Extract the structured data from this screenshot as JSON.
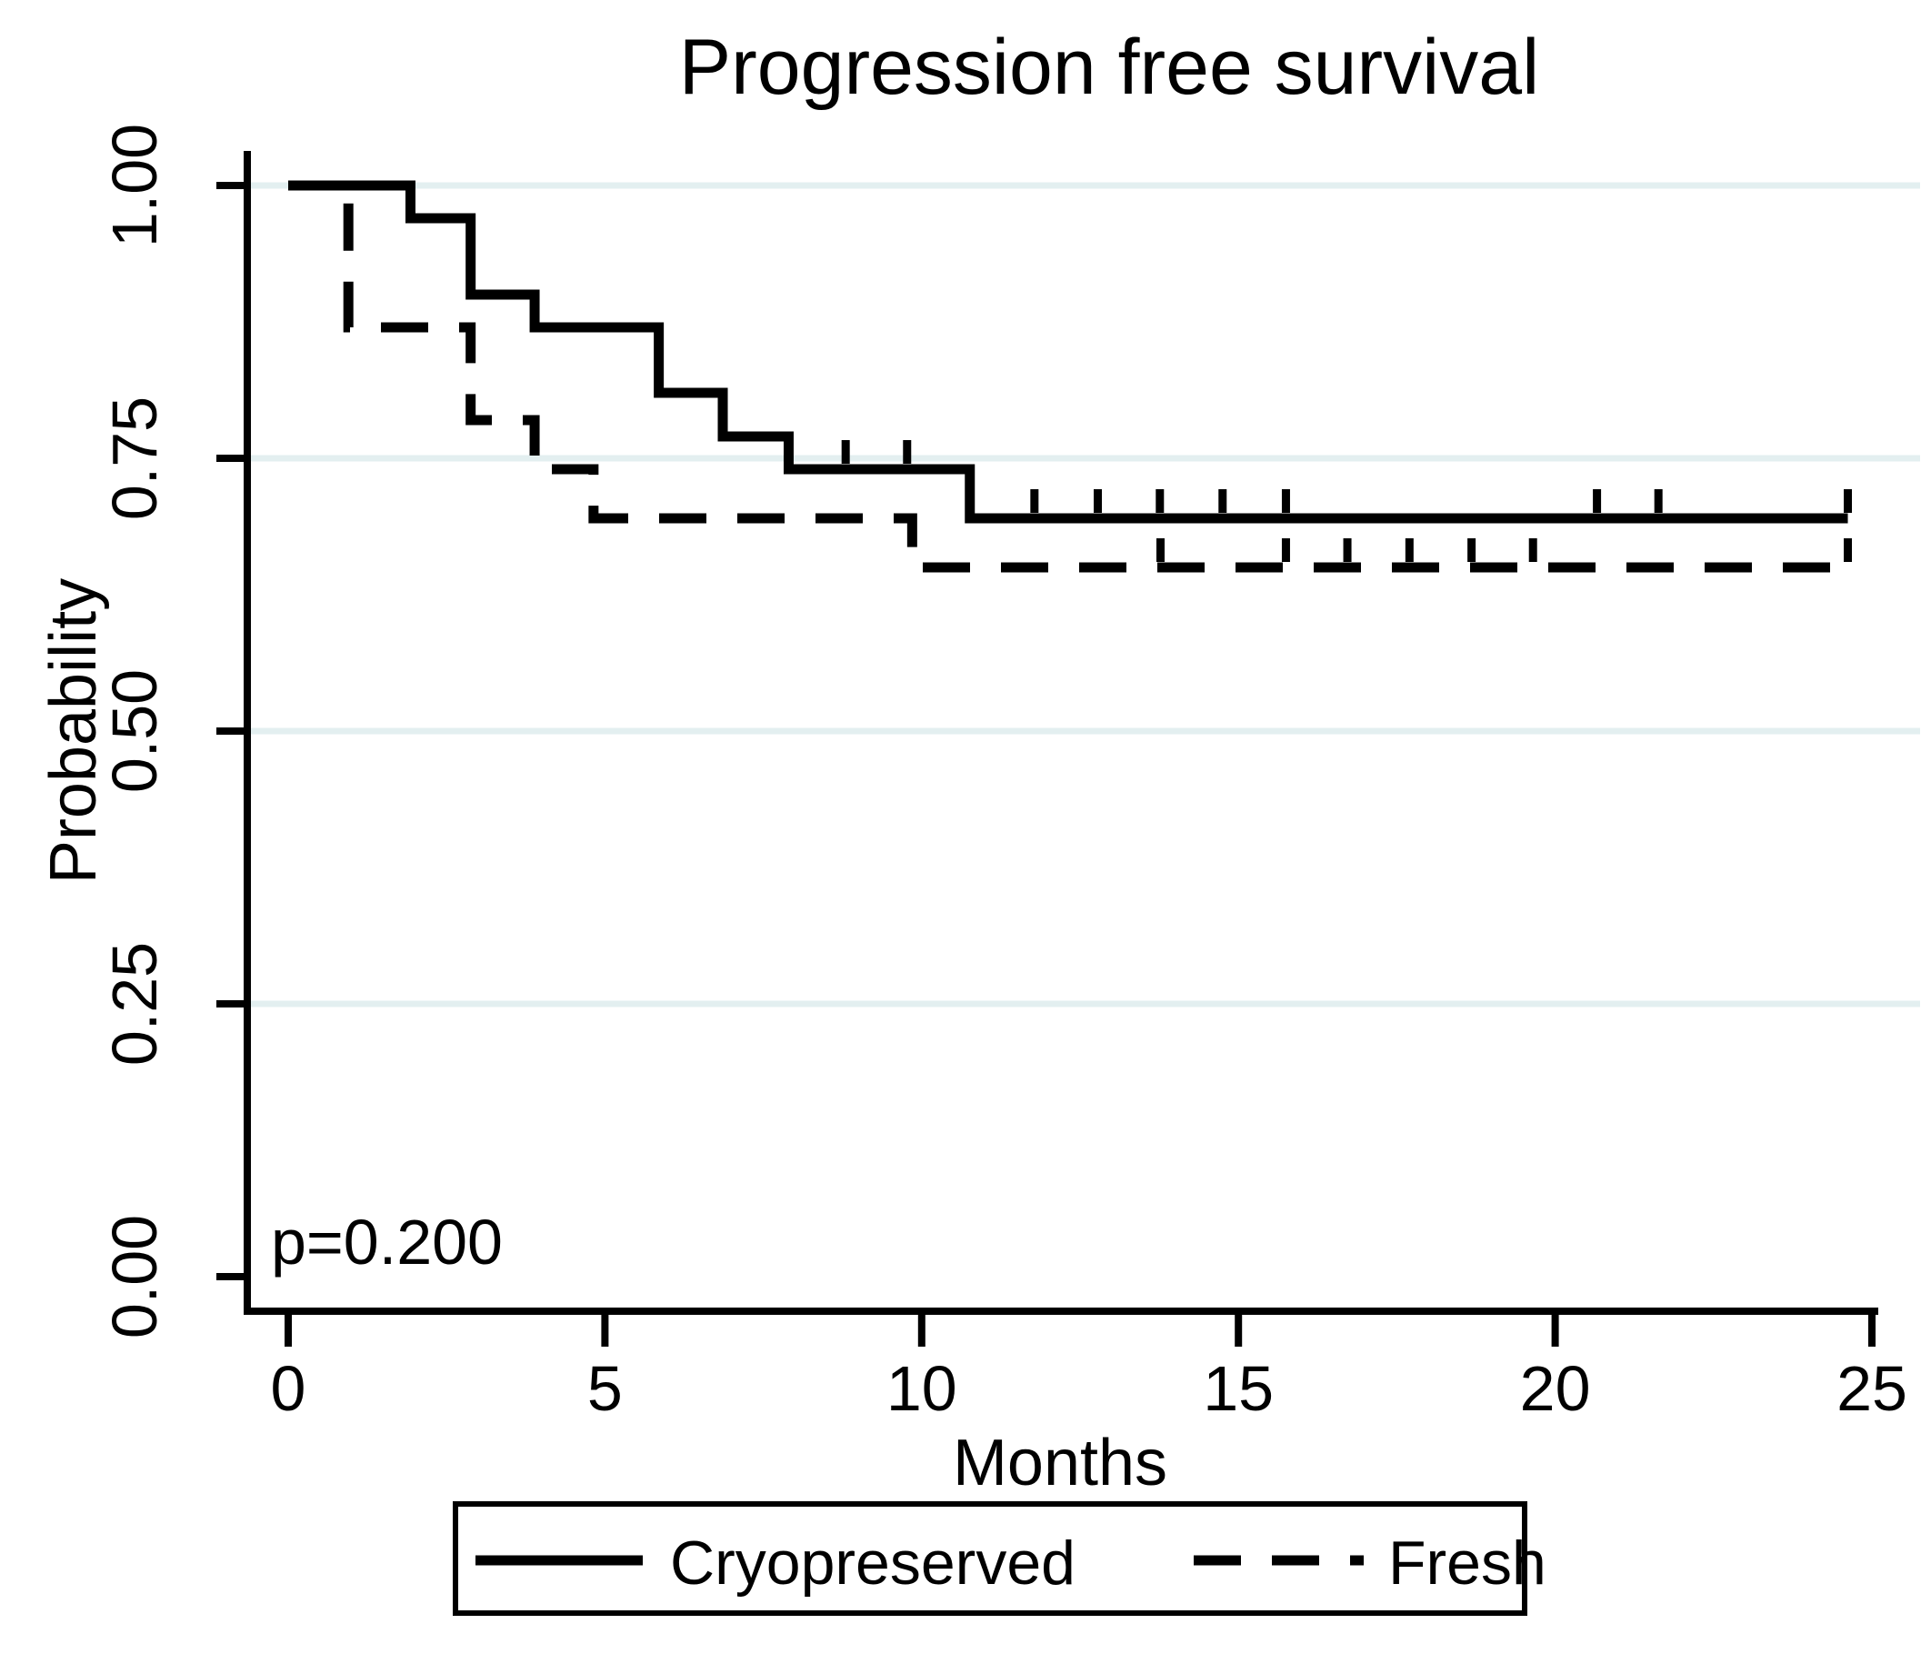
{
  "title": "Progression free survival",
  "annotation": "p=0.200",
  "chart_data": {
    "type": "line",
    "subtype": "kaplan-meier-step",
    "title": "Progression free survival",
    "xlabel": "Months",
    "ylabel": "Probability",
    "xlim": [
      0,
      25
    ],
    "ylim": [
      0.0,
      1.0
    ],
    "xticks": [
      0,
      5,
      10,
      15,
      20,
      25
    ],
    "ytick_labels": [
      "0.00",
      "0.25",
      "0.50",
      "0.75",
      "1.00"
    ],
    "ytick_values": [
      0.0,
      0.25,
      0.5,
      0.75,
      1.0
    ],
    "grid": "horizontal",
    "gridline_color": "#e3eff0",
    "axis_color": "#000000",
    "curve_color": "#000000",
    "legend_position": "bottom",
    "annotation": {
      "text": "p=0.200",
      "x": 0.2,
      "y": 0.04
    },
    "series": [
      {
        "name": "Cryopreserved",
        "style": "solid",
        "color": "#000000",
        "steps": [
          [
            0,
            1.0
          ],
          [
            1.93,
            0.97
          ],
          [
            2.88,
            0.9
          ],
          [
            3.89,
            0.87
          ],
          [
            5.85,
            0.81
          ],
          [
            6.86,
            0.77
          ],
          [
            7.9,
            0.74
          ],
          [
            10.76,
            0.695
          ]
        ],
        "end_time": 24.62,
        "censor_marks": [
          [
            8.8,
            0.74
          ],
          [
            9.77,
            0.74
          ],
          [
            11.78,
            0.695
          ],
          [
            12.78,
            0.695
          ],
          [
            13.76,
            0.695
          ],
          [
            14.75,
            0.695
          ],
          [
            15.75,
            0.695
          ],
          [
            20.66,
            0.695
          ],
          [
            21.63,
            0.695
          ],
          [
            24.62,
            0.695
          ]
        ]
      },
      {
        "name": "Fresh",
        "style": "dashed",
        "color": "#000000",
        "steps": [
          [
            0,
            1.0
          ],
          [
            0.95,
            0.87
          ],
          [
            2.88,
            0.785
          ],
          [
            3.89,
            0.74
          ],
          [
            4.82,
            0.695
          ],
          [
            9.85,
            0.65
          ]
        ],
        "end_time": 24.62,
        "censor_marks": [
          [
            13.77,
            0.65
          ],
          [
            15.75,
            0.65
          ],
          [
            16.72,
            0.65
          ],
          [
            17.7,
            0.65
          ],
          [
            18.68,
            0.65
          ],
          [
            19.65,
            0.65
          ],
          [
            24.62,
            0.65
          ]
        ]
      }
    ]
  }
}
